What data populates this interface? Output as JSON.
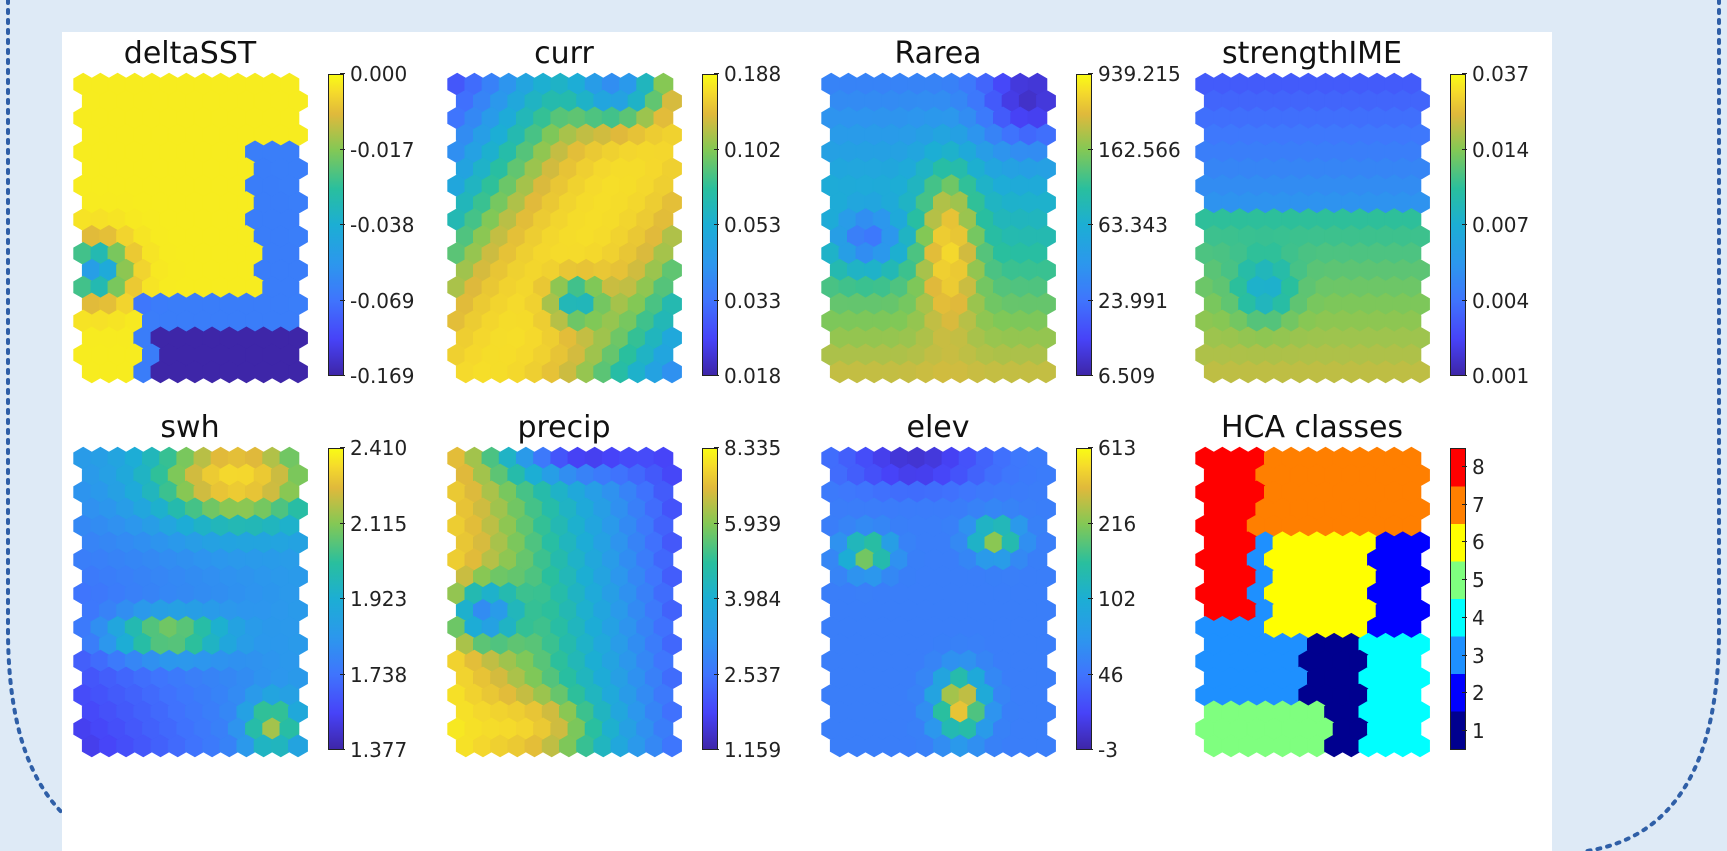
{
  "chart_data": [
    {
      "type": "heatmap",
      "title": "deltaSST",
      "colorbar_ticks": [
        "0.000",
        "-0.017",
        "-0.038",
        "-0.069",
        "-0.169"
      ],
      "colormap": "parula"
    },
    {
      "type": "heatmap",
      "title": "curr",
      "colorbar_ticks": [
        "0.188",
        "0.102",
        "0.053",
        "0.033",
        "0.018"
      ],
      "colormap": "parula"
    },
    {
      "type": "heatmap",
      "title": "Rarea",
      "colorbar_ticks": [
        "939.215",
        "162.566",
        "63.343",
        "23.991",
        "6.509"
      ],
      "colormap": "parula"
    },
    {
      "type": "heatmap",
      "title": "strengthIME",
      "colorbar_ticks": [
        "0.037",
        "0.014",
        "0.007",
        "0.004",
        "0.001"
      ],
      "colormap": "parula"
    },
    {
      "type": "heatmap",
      "title": "swh",
      "colorbar_ticks": [
        "2.410",
        "2.115",
        "1.923",
        "1.738",
        "1.377"
      ],
      "colormap": "parula"
    },
    {
      "type": "heatmap",
      "title": "precip",
      "colorbar_ticks": [
        "8.335",
        "5.939",
        "3.984",
        "2.537",
        "1.159"
      ],
      "colormap": "parula"
    },
    {
      "type": "heatmap",
      "title": "elev",
      "colorbar_ticks": [
        "613",
        "216",
        "102",
        "46",
        "-3"
      ],
      "colormap": "parula"
    },
    {
      "type": "heatmap",
      "title": "HCA classes",
      "colorbar_ticks": [
        "8",
        "7",
        "6",
        "5",
        "4",
        "3",
        "2",
        "1"
      ],
      "colormap": "jet-8"
    }
  ],
  "colors": {
    "background": "#deeaf6",
    "frame_dots": "#2f5fa7",
    "parula": [
      "#3e26a8",
      "#4743f8",
      "#3f75fd",
      "#2c97ed",
      "#1caed4",
      "#29bf9e",
      "#83c855",
      "#e0b93b",
      "#f5d92c",
      "#f9fb15"
    ],
    "jet8": [
      "#00008f",
      "#0000ff",
      "#1e90ff",
      "#00ffff",
      "#7fff7f",
      "#ffff00",
      "#ff7f00",
      "#ff0000"
    ]
  }
}
